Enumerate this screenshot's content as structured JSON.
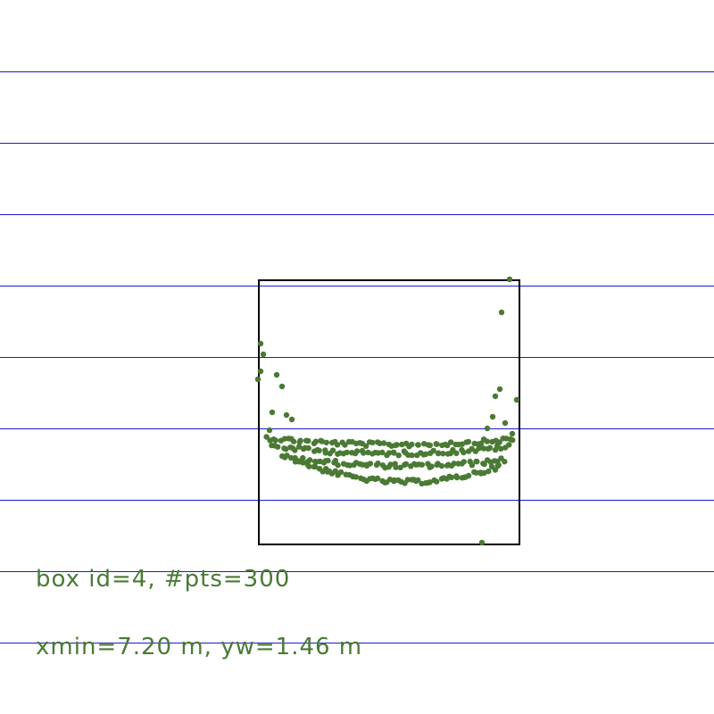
{
  "colors": {
    "background": "#ffffff",
    "scan_lines": "#1a1ad6",
    "box_outline": "#000000",
    "points": "#4a7a34",
    "text": "#4a7a34"
  },
  "labels": {
    "line1": "box id=4, #pts=300",
    "line2": "xmin=7.20 m, yw=1.46 m"
  },
  "box": {
    "id": 4,
    "num_points": 300,
    "xmin_m": 7.2,
    "yw_m": 1.46
  }
}
